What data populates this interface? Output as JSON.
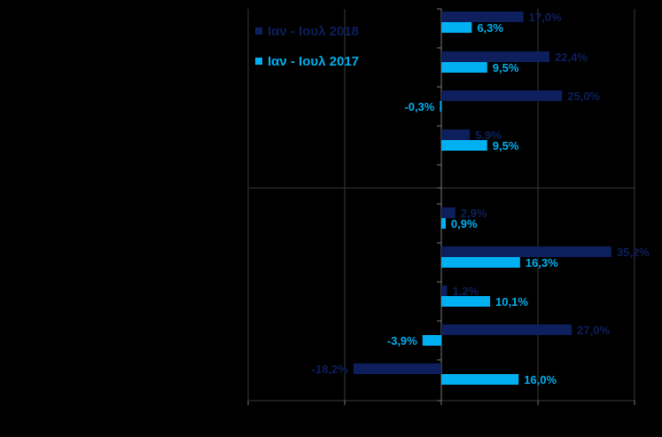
{
  "chart_data": {
    "type": "bar",
    "orientation": "horizontal",
    "legend_position": "top-left",
    "grid": true,
    "xlim": [
      -40,
      40
    ],
    "series": [
      {
        "name": "Ιαν - Ιουλ 2018",
        "color": "#0d1f5c",
        "values": [
          17.0,
          22.4,
          25.0,
          5.9,
          2.9,
          35.2,
          1.2,
          27.0,
          -18.2
        ],
        "labels": [
          "17,0%",
          "22,4%",
          "25,0%",
          "5,9%",
          "2,9%",
          "35,2%",
          "1,2%",
          "27,0%",
          "-18,2%"
        ]
      },
      {
        "name": "Ιαν - Ιουλ 2017",
        "color": "#00b0f0",
        "values": [
          6.3,
          9.5,
          -0.3,
          9.5,
          0.9,
          16.3,
          10.1,
          -3.9,
          16.0
        ],
        "labels": [
          "6,3%",
          "9,5%",
          "-0,3%",
          "9,5%",
          "0,9%",
          "16,3%",
          "10,1%",
          "-3,9%",
          "16,0%"
        ]
      }
    ]
  }
}
